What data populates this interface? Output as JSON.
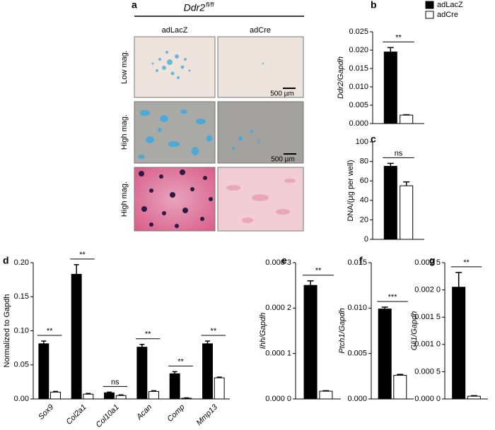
{
  "panel_a": {
    "label": "a",
    "title": "Ddr2",
    "title_sup": "fl/fl",
    "columns": [
      "adLacZ",
      "adCre"
    ],
    "rows": [
      "Low mag.",
      "High mag.",
      "High mag."
    ],
    "scale_bars": [
      "500 µm",
      "500 µm"
    ]
  },
  "chart_data": [
    {
      "type": "bar",
      "panel_label": "b",
      "ylabel": "Ddr2/Gapdh",
      "legend": "upper right",
      "ylim": [
        0,
        0.025
      ],
      "yticks": [
        {
          "value": 0,
          "label": "0.000"
        },
        {
          "value": 0.005,
          "label": "0.005"
        },
        {
          "value": 0.01,
          "label": "0.010"
        },
        {
          "value": 0.015,
          "label": "0.015"
        },
        {
          "value": 0.02,
          "label": "0.020"
        },
        {
          "value": 0.025,
          "label": "0.025"
        }
      ],
      "series": [
        {
          "name": "adLacZ",
          "color": "#000000",
          "values": [
            0.0195
          ],
          "errors": [
            0.0012
          ]
        },
        {
          "name": "adCre",
          "color": "#ffffff",
          "values": [
            0.0023
          ],
          "errors": [
            0.0001
          ]
        }
      ],
      "significance": [
        "**"
      ]
    },
    {
      "type": "bar",
      "panel_label": "c",
      "ylabel": "DNA/(µg per well)",
      "ylim": [
        0,
        100
      ],
      "yticks": [
        0,
        20,
        40,
        60,
        80,
        100
      ],
      "series": [
        {
          "color": "#000000",
          "values": [
            75
          ],
          "errors": [
            3
          ]
        },
        {
          "color": "#ffffff",
          "values": [
            55
          ],
          "errors": [
            4
          ]
        }
      ],
      "significance": [
        "ns"
      ]
    },
    {
      "type": "bar",
      "panel_label": "d",
      "ylabel": "Normalized to Gapdh",
      "categories": [
        "Sox9",
        "Col2a1",
        "Col10a1",
        "Acan",
        "Comp",
        "Mmp13"
      ],
      "ylim": [
        0,
        0.2
      ],
      "yticks": [
        {
          "value": 0,
          "label": "0.00"
        },
        {
          "value": 0.05,
          "label": "0.05"
        },
        {
          "value": 0.1,
          "label": "0.10"
        },
        {
          "value": 0.15,
          "label": "0.15"
        },
        {
          "value": 0.2,
          "label": "0.20"
        }
      ],
      "series": [
        {
          "color": "#000000",
          "values": [
            0.081,
            0.183,
            0.009,
            0.076,
            0.037,
            0.081
          ],
          "errors": [
            0.004,
            0.014,
            0.001,
            0.004,
            0.003,
            0.004
          ]
        },
        {
          "color": "#ffffff",
          "values": [
            0.01,
            0.007,
            0.005,
            0.011,
            0.001,
            0.031
          ],
          "errors": [
            0.001,
            0.001,
            0.001,
            0.001,
            0.0005,
            0.001
          ]
        }
      ],
      "significance": [
        "**",
        "**",
        "ns",
        "**",
        "**",
        "**"
      ]
    },
    {
      "type": "bar",
      "panel_label": "e",
      "ylabel": "Ihh/Gapdh",
      "ylim": [
        0,
        0.0003
      ],
      "yticks": [
        {
          "value": 0,
          "label": "0.000 0"
        },
        {
          "value": 0.0001,
          "label": "0.000 1"
        },
        {
          "value": 0.0002,
          "label": "0.000 2"
        },
        {
          "value": 0.0003,
          "label": "0.000 3"
        }
      ],
      "series": [
        {
          "color": "#000000",
          "values": [
            0.00025
          ],
          "errors": [
            1e-05
          ]
        },
        {
          "color": "#ffffff",
          "values": [
            1.7e-05
          ],
          "errors": [
            1e-06
          ]
        }
      ],
      "significance": [
        "**"
      ]
    },
    {
      "type": "bar",
      "panel_label": "f",
      "ylabel": "Ptch1/Gapdh",
      "ylim": [
        0,
        0.015
      ],
      "yticks": [
        {
          "value": 0,
          "label": "0.000"
        },
        {
          "value": 0.005,
          "label": "0.005"
        },
        {
          "value": 0.01,
          "label": "0.010"
        },
        {
          "value": 0.015,
          "label": "0.015"
        }
      ],
      "series": [
        {
          "color": "#000000",
          "values": [
            0.0099
          ],
          "errors": [
            0.0002
          ]
        },
        {
          "color": "#ffffff",
          "values": [
            0.0026
          ],
          "errors": [
            0.0001
          ]
        }
      ],
      "significance": [
        "***"
      ]
    },
    {
      "type": "bar",
      "panel_label": "g",
      "ylabel": "Gli1/Gapdh",
      "ylim": [
        0,
        0.0025
      ],
      "yticks": [
        {
          "value": 0,
          "label": "0.000 0"
        },
        {
          "value": 0.0005,
          "label": "0.000 5"
        },
        {
          "value": 0.001,
          "label": "0.001 0"
        },
        {
          "value": 0.0015,
          "label": "0.001 5"
        },
        {
          "value": 0.002,
          "label": "0.002 0"
        },
        {
          "value": 0.0025,
          "label": "0.002 5"
        }
      ],
      "series": [
        {
          "color": "#000000",
          "values": [
            0.00205
          ],
          "errors": [
            0.00027
          ]
        },
        {
          "color": "#ffffff",
          "values": [
            5e-05
          ],
          "errors": [
            1e-05
          ]
        }
      ],
      "significance": [
        "**"
      ]
    }
  ]
}
